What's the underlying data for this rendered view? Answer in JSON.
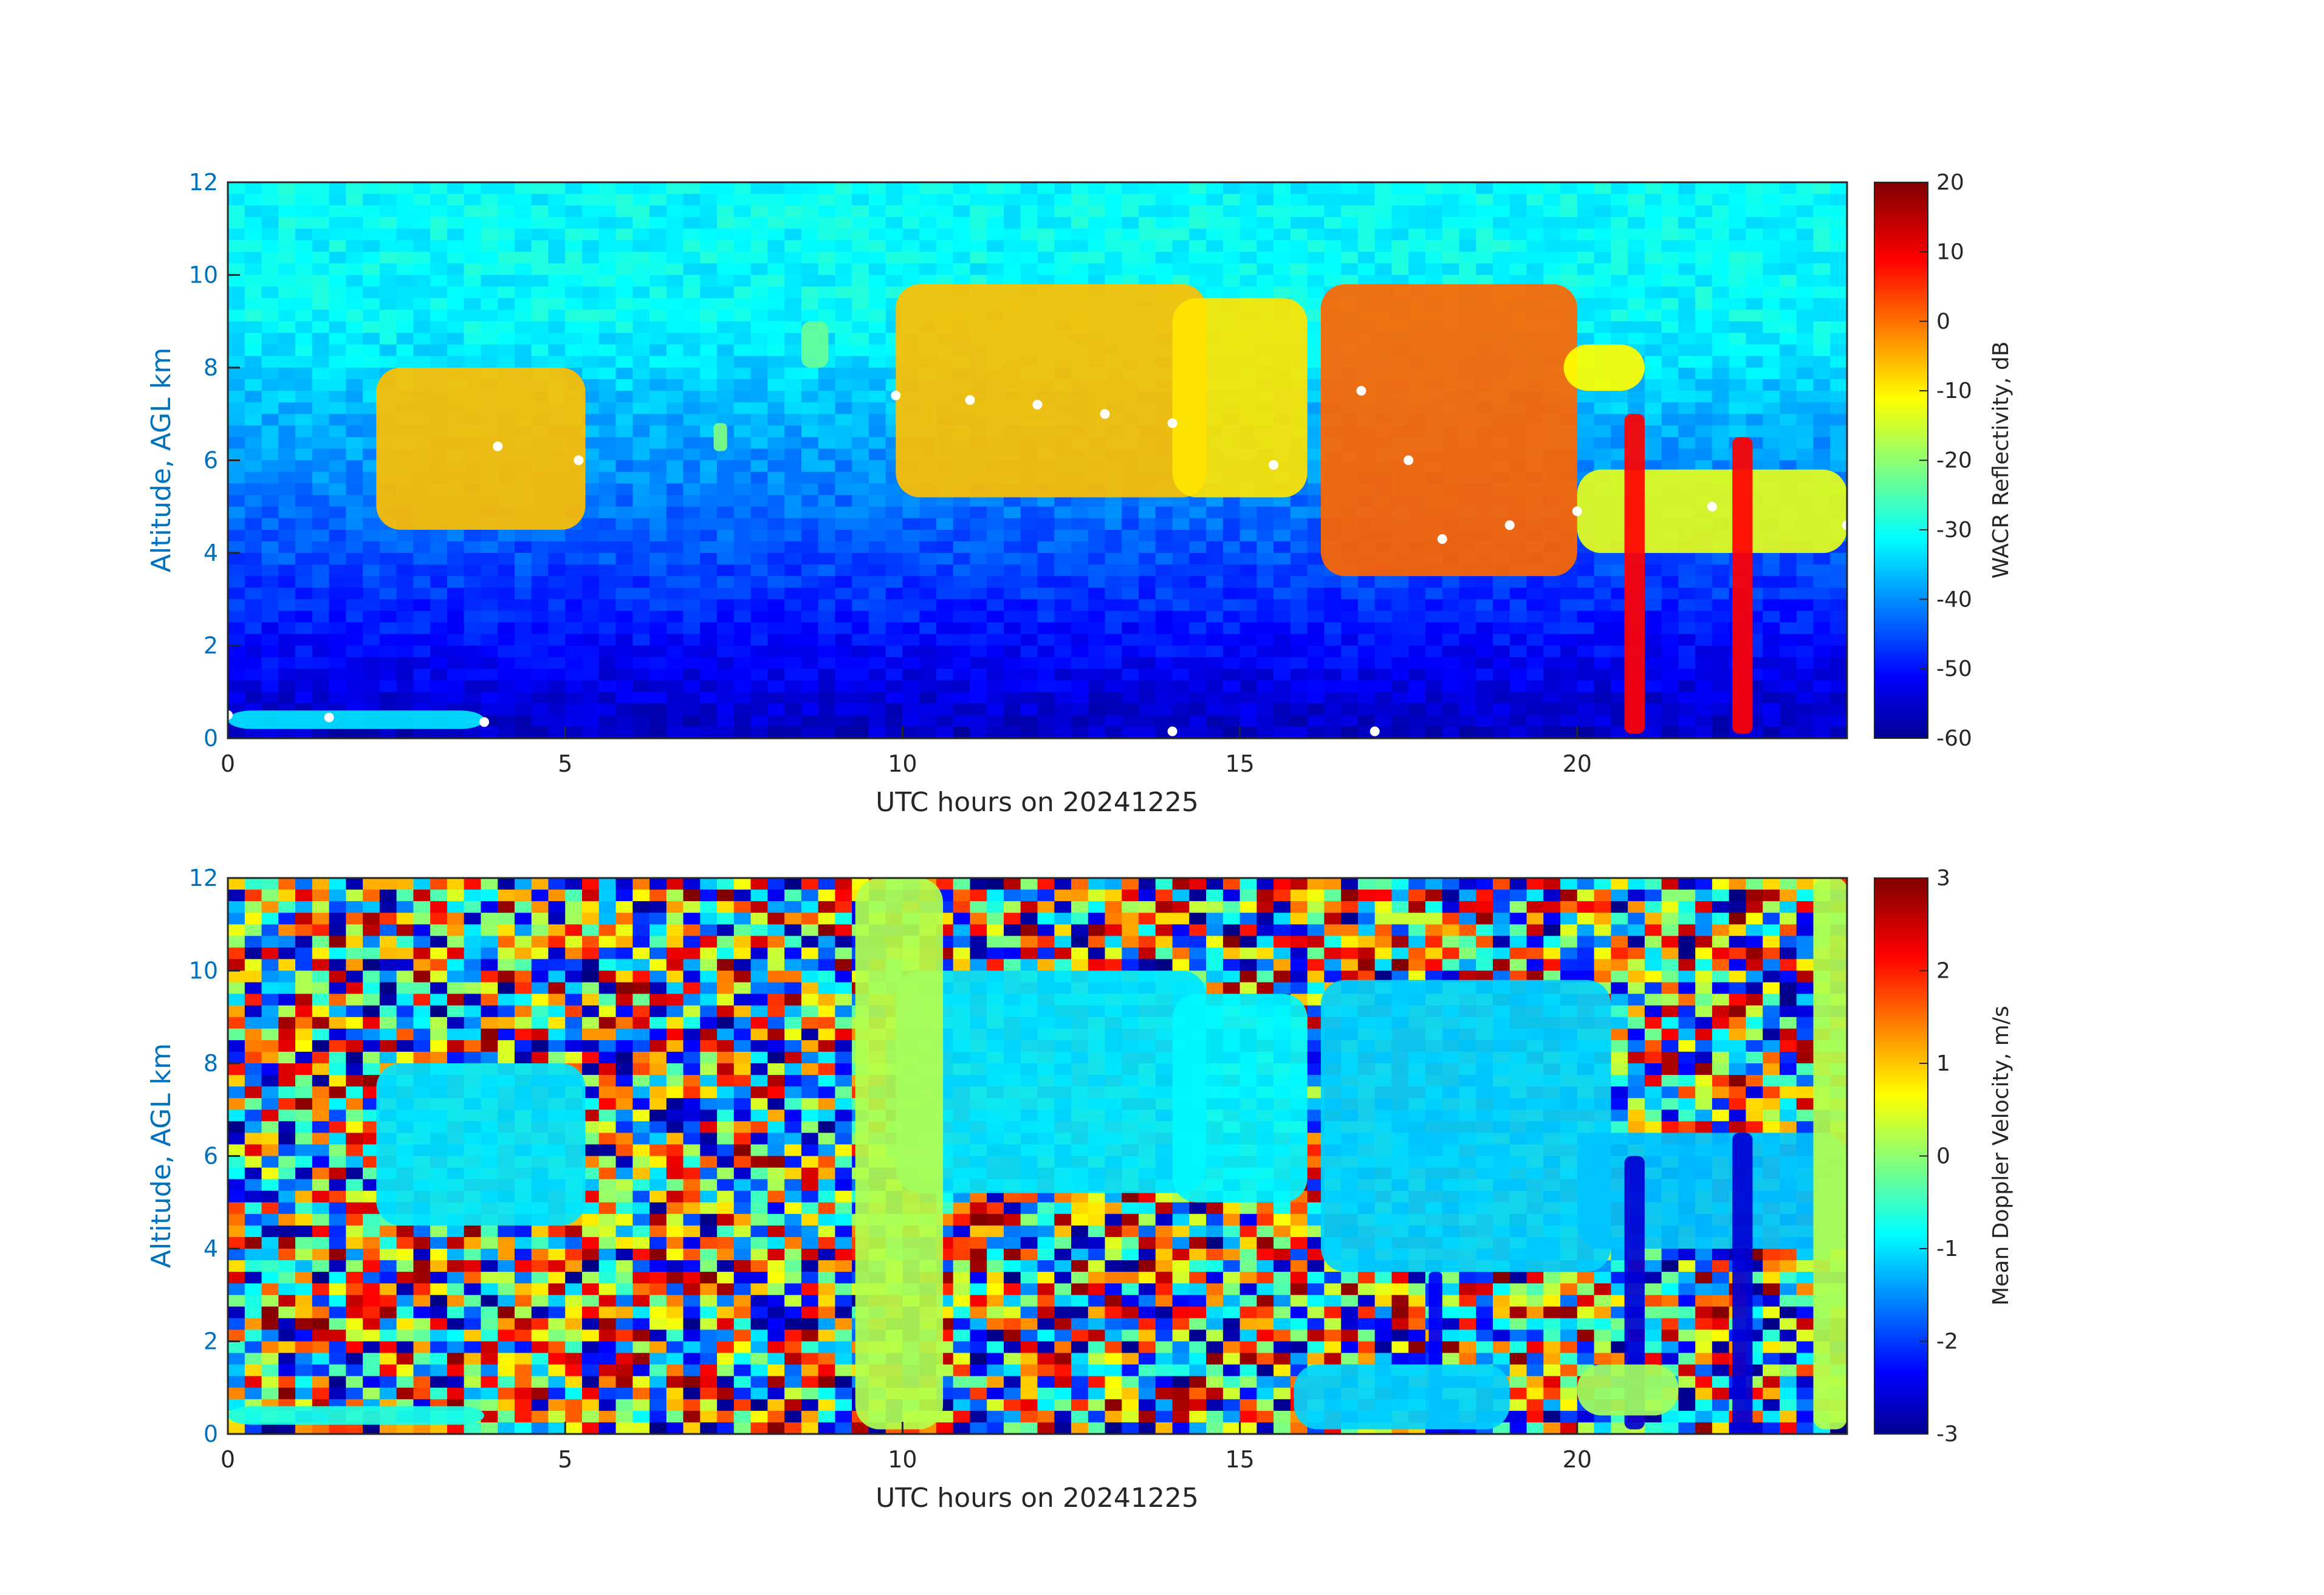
{
  "chart_data": [
    {
      "type": "heatmap",
      "xlabel": "UTC hours on 20241225",
      "ylabel": "Altitude, AGL km",
      "xlim": [
        0,
        24
      ],
      "ylim": [
        0,
        12
      ],
      "xticks": [
        "0",
        "5",
        "10",
        "15",
        "20"
      ],
      "yticks": [
        "0",
        "2",
        "4",
        "6",
        "8",
        "10",
        "12"
      ],
      "colorbar": {
        "label": "WACR Reflectivity, dB",
        "range": [
          -60,
          20
        ],
        "ticks": [
          "20",
          "10",
          "0",
          "-10",
          "-20",
          "-30",
          "-40",
          "-50",
          "-60"
        ],
        "colormap": "jet"
      },
      "background": "noise from about -30 dB aloft decreasing to about -55 dB near the surface",
      "features": [
        {
          "x": [
            2.2,
            5.3
          ],
          "y": [
            4.5,
            8.0
          ],
          "value_dB": -5
        },
        {
          "x": [
            8.5,
            8.9
          ],
          "y": [
            8.0,
            9.0
          ],
          "value_dB": -22
        },
        {
          "x": [
            7.2,
            7.4
          ],
          "y": [
            6.2,
            6.8
          ],
          "value_dB": -20
        },
        {
          "x": [
            9.9,
            14.5
          ],
          "y": [
            5.2,
            9.8
          ],
          "value_dB": -5
        },
        {
          "x": [
            14.0,
            16.0
          ],
          "y": [
            5.2,
            9.5
          ],
          "value_dB": -8
        },
        {
          "x": [
            16.2,
            20.0
          ],
          "y": [
            3.5,
            9.8
          ],
          "value_dB": 2
        },
        {
          "x": [
            19.8,
            21.0
          ],
          "y": [
            7.5,
            8.5
          ],
          "value_dB": -10
        },
        {
          "x": [
            20.0,
            24.0
          ],
          "y": [
            4.0,
            5.8
          ],
          "value_dB": -12
        },
        {
          "x": [
            20.7,
            21.0
          ],
          "y": [
            0.1,
            7.0
          ],
          "value_dB": 10
        },
        {
          "x": [
            22.3,
            22.6
          ],
          "y": [
            0.1,
            6.5
          ],
          "value_dB": 10
        },
        {
          "x": [
            0.0,
            3.8
          ],
          "y": [
            0.2,
            0.6
          ],
          "value_dB": -32
        }
      ],
      "cloud_base_markers": [
        {
          "x": 0.0,
          "y": 0.5
        },
        {
          "x": 1.5,
          "y": 0.45
        },
        {
          "x": 3.8,
          "y": 0.35
        },
        {
          "x": 4.0,
          "y": 6.3
        },
        {
          "x": 5.2,
          "y": 6.0
        },
        {
          "x": 9.9,
          "y": 7.4
        },
        {
          "x": 11.0,
          "y": 7.3
        },
        {
          "x": 12.0,
          "y": 7.2
        },
        {
          "x": 13.0,
          "y": 7.0
        },
        {
          "x": 14.0,
          "y": 6.8
        },
        {
          "x": 15.5,
          "y": 5.9
        },
        {
          "x": 16.8,
          "y": 7.5
        },
        {
          "x": 17.5,
          "y": 6.0
        },
        {
          "x": 18.0,
          "y": 4.3
        },
        {
          "x": 19.0,
          "y": 4.6
        },
        {
          "x": 20.0,
          "y": 4.9
        },
        {
          "x": 22.0,
          "y": 5.0
        },
        {
          "x": 24.0,
          "y": 4.6
        },
        {
          "x": 14.0,
          "y": 0.15
        },
        {
          "x": 17.0,
          "y": 0.15
        }
      ]
    },
    {
      "type": "heatmap",
      "xlabel": "UTC hours on 20241225",
      "ylabel": "Altitude, AGL km",
      "xlim": [
        0,
        24
      ],
      "ylim": [
        0,
        12
      ],
      "xticks": [
        "0",
        "5",
        "10",
        "15",
        "20"
      ],
      "yticks": [
        "0",
        "2",
        "4",
        "6",
        "8",
        "10",
        "12"
      ],
      "colorbar": {
        "label": "Mean Doppler Velocity, m/s",
        "range": [
          -3,
          3
        ],
        "ticks": [
          "3",
          "2",
          "1",
          "0",
          "-1",
          "-2",
          "-3"
        ],
        "colormap": "jet"
      },
      "background": "random noise across full velocity range",
      "features": [
        {
          "x": [
            2.2,
            5.3
          ],
          "y": [
            4.5,
            8.0
          ],
          "value_ms": -0.9
        },
        {
          "x": [
            9.9,
            14.5
          ],
          "y": [
            5.2,
            10.0
          ],
          "value_ms": -0.9
        },
        {
          "x": [
            14.0,
            16.0
          ],
          "y": [
            5.0,
            9.5
          ],
          "value_ms": -0.8
        },
        {
          "x": [
            16.2,
            20.5
          ],
          "y": [
            3.5,
            9.8
          ],
          "value_ms": -1.0
        },
        {
          "x": [
            20.0,
            24.0
          ],
          "y": [
            4.0,
            6.5
          ],
          "value_ms": -1.1
        },
        {
          "x": [
            20.7,
            21.0
          ],
          "y": [
            0.1,
            6.0
          ],
          "value_ms": -2.5
        },
        {
          "x": [
            22.3,
            22.6
          ],
          "y": [
            0.1,
            6.5
          ],
          "value_ms": -2.5
        },
        {
          "x": [
            17.8,
            18.0
          ],
          "y": [
            0.1,
            3.5
          ],
          "value_ms": -2.3
        },
        {
          "x": [
            15.8,
            19.0
          ],
          "y": [
            0.1,
            1.5
          ],
          "value_ms": -1.0
        },
        {
          "x": [
            20.0,
            21.5
          ],
          "y": [
            0.4,
            1.5
          ],
          "value_ms": 0.2
        },
        {
          "x": [
            9.3,
            10.6
          ],
          "y": [
            0.1,
            12.0
          ],
          "value_ms": 0.3
        },
        {
          "x": [
            23.5,
            24.0
          ],
          "y": [
            0.1,
            12.0
          ],
          "value_ms": 0.3
        },
        {
          "x": [
            0.0,
            3.8
          ],
          "y": [
            0.2,
            0.6
          ],
          "value_ms": -0.6
        }
      ]
    }
  ]
}
